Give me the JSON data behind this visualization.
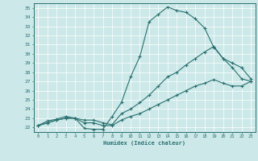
{
  "xlabel": "Humidex (Indice chaleur)",
  "ylabel": "",
  "bg_color": "#cce8e8",
  "line_color": "#2a7070",
  "grid_color": "#ffffff",
  "xlim": [
    -0.5,
    23.5
  ],
  "ylim": [
    21.5,
    35.5
  ],
  "xticks": [
    0,
    1,
    2,
    3,
    4,
    5,
    6,
    7,
    8,
    9,
    10,
    11,
    12,
    13,
    14,
    15,
    16,
    17,
    18,
    19,
    20,
    21,
    22,
    23
  ],
  "yticks": [
    22,
    23,
    24,
    25,
    26,
    27,
    28,
    29,
    30,
    31,
    32,
    33,
    34,
    35
  ],
  "series": [
    [
      22.2,
      22.7,
      22.9,
      23.2,
      23.0,
      21.9,
      21.8,
      21.8,
      23.2,
      24.7,
      27.5,
      29.7,
      33.5,
      34.3,
      35.1,
      34.7,
      34.5,
      33.8,
      32.8,
      30.7,
      29.5,
      28.5,
      27.3,
      27.0
    ],
    [
      22.2,
      22.5,
      22.8,
      23.0,
      23.0,
      22.8,
      22.8,
      22.5,
      22.3,
      23.5,
      24.0,
      24.7,
      25.5,
      26.5,
      27.5,
      28.0,
      28.8,
      29.5,
      30.2,
      30.8,
      29.5,
      29.0,
      28.5,
      27.3
    ],
    [
      22.2,
      22.5,
      22.8,
      23.0,
      23.0,
      22.5,
      22.5,
      22.2,
      22.2,
      22.8,
      23.2,
      23.5,
      24.0,
      24.5,
      25.0,
      25.5,
      26.0,
      26.5,
      26.8,
      27.2,
      26.8,
      26.5,
      26.5,
      27.0
    ]
  ]
}
